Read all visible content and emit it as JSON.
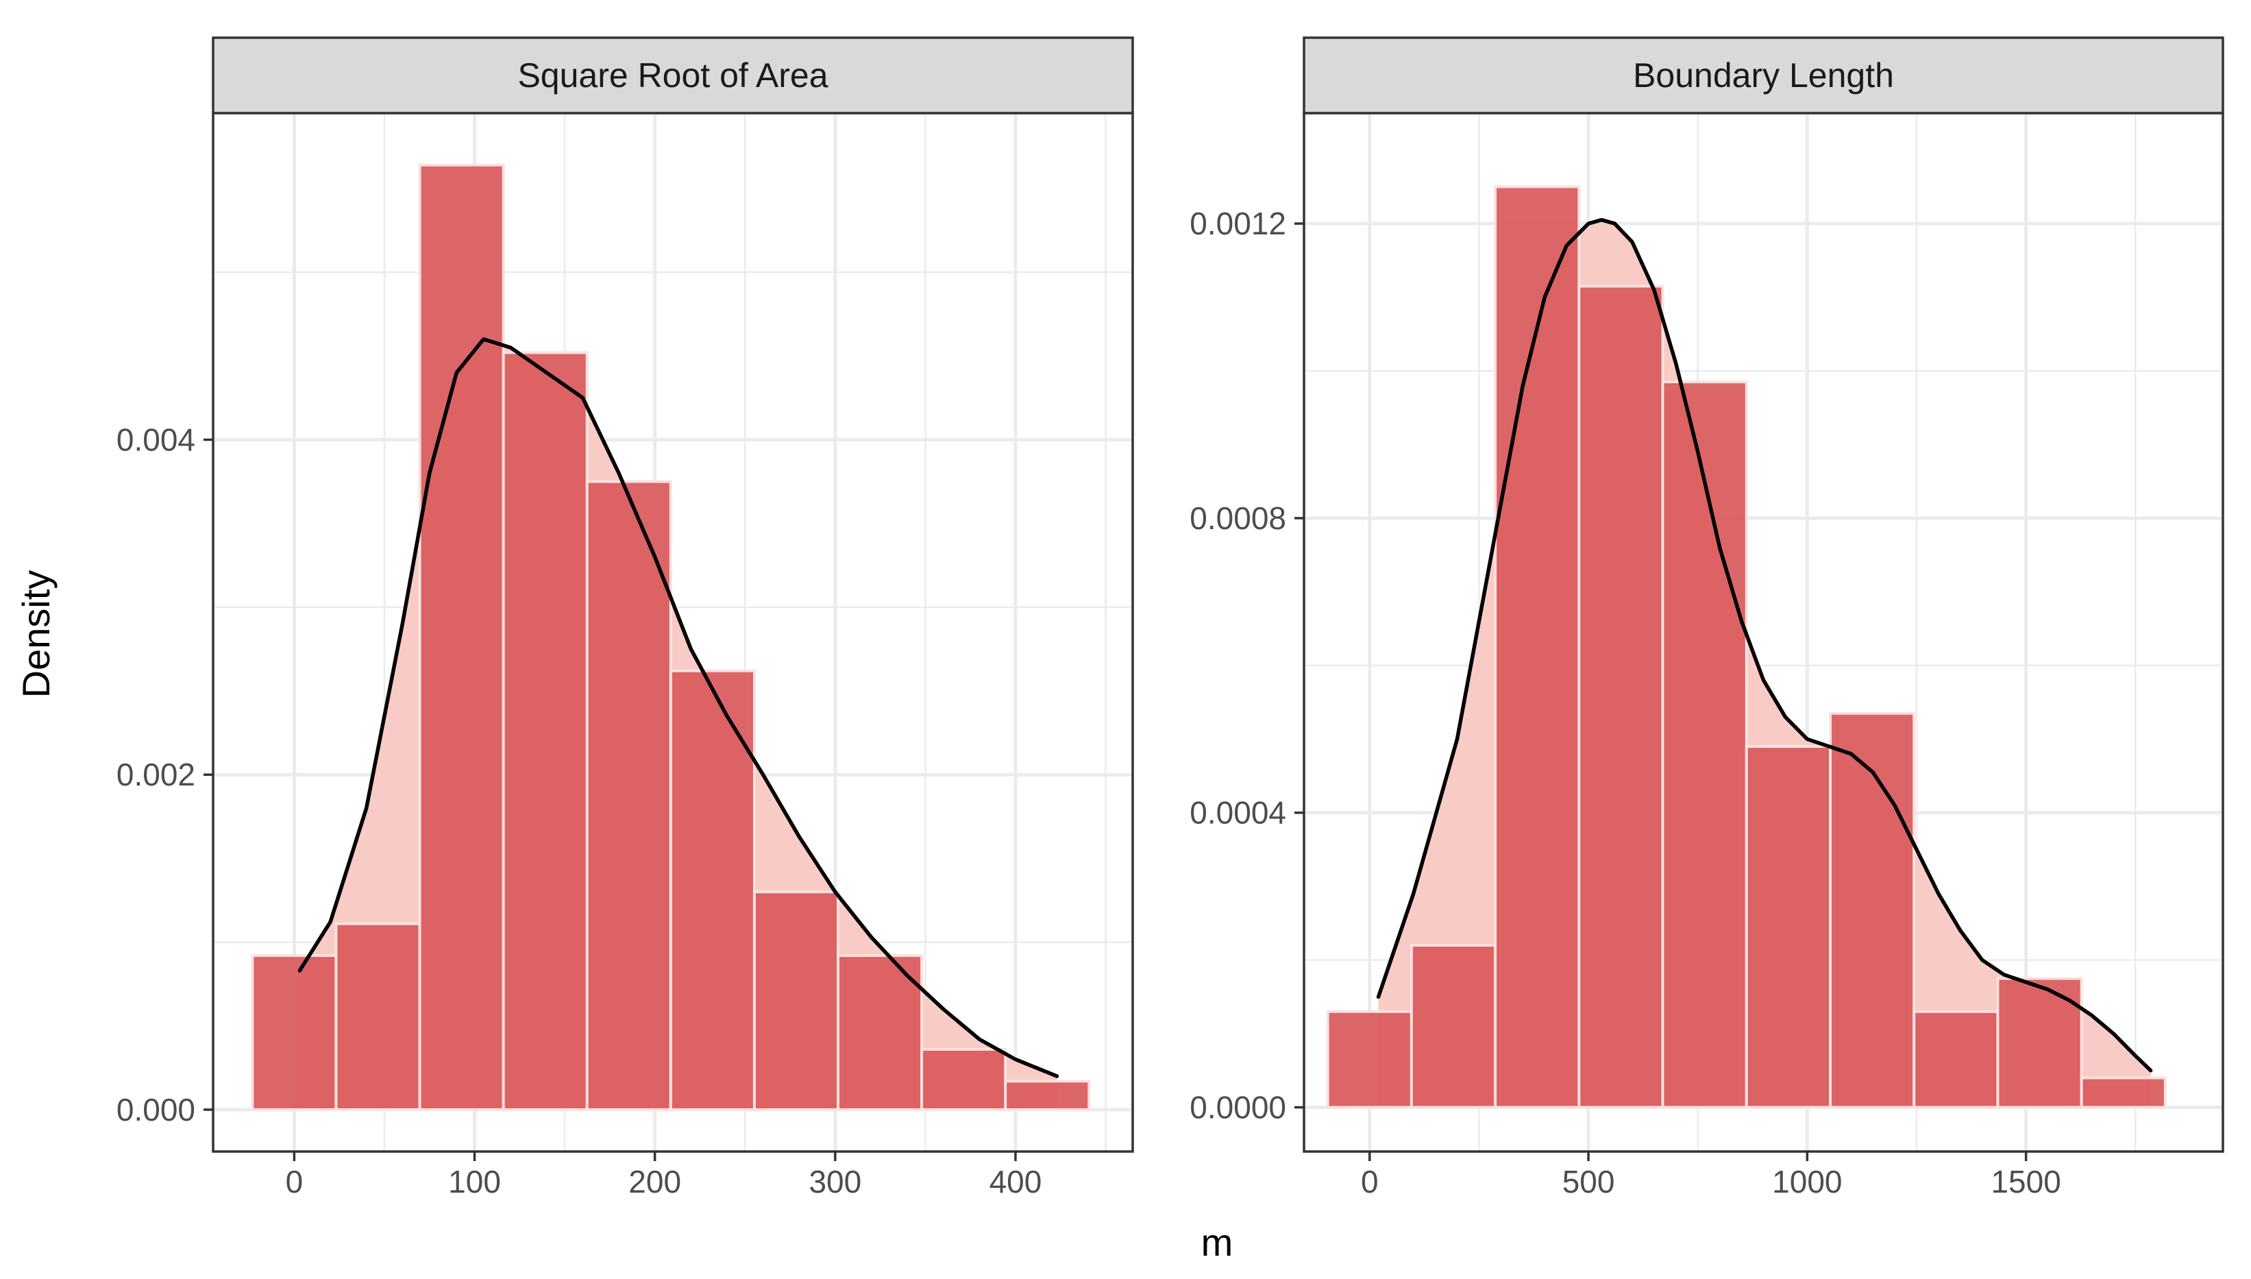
{
  "figure": {
    "ylabel": "Density",
    "xlabel": "m",
    "colors": {
      "bar_fill": "#d9595c",
      "bar_outline": "#fbe1df",
      "density_fill": "#f9cbc6",
      "density_line": "#000000",
      "grid": "#ebebeb",
      "strip_bg": "#d9d9d9",
      "panel_border": "#333333"
    }
  },
  "chart_data": [
    {
      "type": "bar",
      "title": "Square Root of Area",
      "xlabel": "m",
      "ylabel": "Density",
      "xlim": [
        -45,
        465
      ],
      "ylim": [
        -0.00025,
        0.00595
      ],
      "x_ticks": [
        0,
        100,
        200,
        300,
        400
      ],
      "x_tick_labels": [
        "0",
        "100",
        "200",
        "300",
        "400"
      ],
      "y_ticks": [
        0,
        0.002,
        0.004
      ],
      "y_tick_labels": [
        "0.000",
        "0.002",
        "0.004"
      ],
      "grid": true,
      "bin_width": 46.4,
      "bins": [
        {
          "center": 0,
          "density": 0.00092
        },
        {
          "center": 46.4,
          "density": 0.00111
        },
        {
          "center": 92.8,
          "density": 0.00564
        },
        {
          "center": 139.2,
          "density": 0.00452
        },
        {
          "center": 185.6,
          "density": 0.00375
        },
        {
          "center": 232.0,
          "density": 0.00262
        },
        {
          "center": 278.4,
          "density": 0.0013
        },
        {
          "center": 324.8,
          "density": 0.00092
        },
        {
          "center": 371.2,
          "density": 0.00036
        },
        {
          "center": 417.6,
          "density": 0.00017
        }
      ],
      "density_curve": {
        "x": [
          3,
          20,
          40,
          60,
          75,
          90,
          105,
          120,
          140,
          160,
          180,
          200,
          220,
          240,
          260,
          280,
          300,
          320,
          340,
          360,
          380,
          400,
          423
        ],
        "y": [
          0.00083,
          0.00112,
          0.0018,
          0.0029,
          0.0038,
          0.0044,
          0.0046,
          0.00455,
          0.0044,
          0.00425,
          0.0038,
          0.0033,
          0.00275,
          0.00235,
          0.002,
          0.00163,
          0.0013,
          0.00103,
          0.0008,
          0.0006,
          0.00042,
          0.0003,
          0.0002
        ]
      }
    },
    {
      "type": "bar",
      "title": "Boundary Length",
      "xlabel": "m",
      "ylabel": "Density",
      "xlim": [
        -150,
        1950
      ],
      "ylim": [
        -6e-05,
        0.00135
      ],
      "x_ticks": [
        0,
        500,
        1000,
        1500
      ],
      "x_tick_labels": [
        "0",
        "500",
        "1000",
        "1500"
      ],
      "y_ticks": [
        0,
        0.0004,
        0.0008,
        0.0012
      ],
      "y_tick_labels": [
        "0.0000",
        "0.0004",
        "0.0008",
        "0.0012"
      ],
      "grid": true,
      "bin_width": 191.4,
      "bins": [
        {
          "center": 0,
          "density": 0.00013
        },
        {
          "center": 191.4,
          "density": 0.00022
        },
        {
          "center": 382.8,
          "density": 0.00125
        },
        {
          "center": 574.2,
          "density": 0.001115
        },
        {
          "center": 765.6,
          "density": 0.000985
        },
        {
          "center": 957.0,
          "density": 0.00049
        },
        {
          "center": 1148.4,
          "density": 0.000535
        },
        {
          "center": 1339.8,
          "density": 0.00013
        },
        {
          "center": 1531.2,
          "density": 0.000175
        },
        {
          "center": 1722.6,
          "density": 4e-05
        }
      ],
      "density_curve": {
        "x": [
          20,
          100,
          200,
          300,
          350,
          400,
          450,
          500,
          530,
          560,
          600,
          650,
          700,
          750,
          800,
          850,
          900,
          950,
          1000,
          1050,
          1100,
          1150,
          1200,
          1250,
          1300,
          1350,
          1400,
          1450,
          1500,
          1550,
          1600,
          1650,
          1700,
          1750,
          1785
        ],
        "y": [
          0.00015,
          0.00029,
          0.0005,
          0.00082,
          0.00098,
          0.0011,
          0.00117,
          0.0012,
          0.001205,
          0.0012,
          0.001175,
          0.00111,
          0.00101,
          0.00089,
          0.00076,
          0.00066,
          0.00058,
          0.00053,
          0.0005,
          0.00049,
          0.00048,
          0.000455,
          0.00041,
          0.00035,
          0.00029,
          0.00024,
          0.0002,
          0.00018,
          0.00017,
          0.00016,
          0.000145,
          0.000125,
          0.0001,
          7e-05,
          5e-05
        ]
      }
    }
  ]
}
